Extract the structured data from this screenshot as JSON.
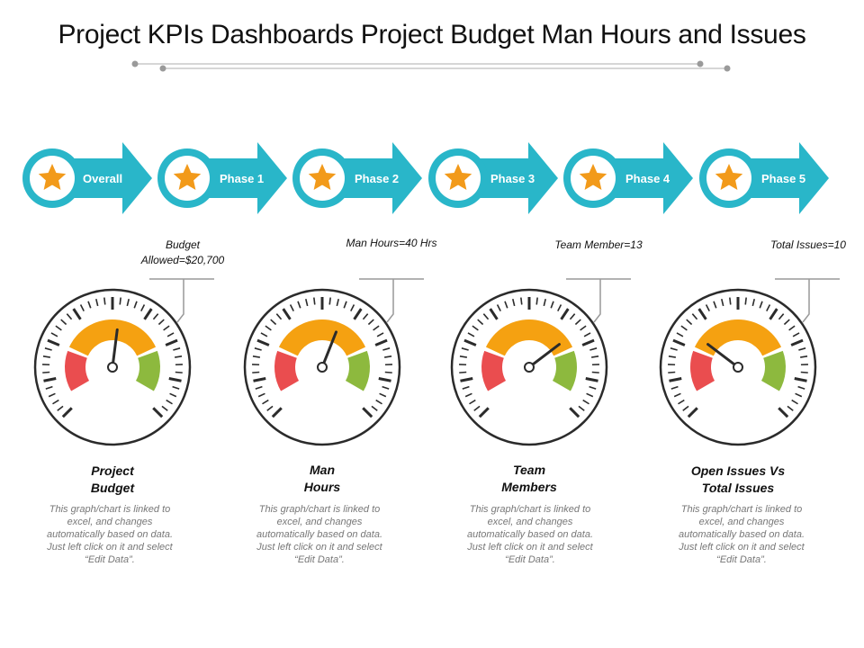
{
  "title": "Project KPIs Dashboards Project Budget Man Hours and Issues",
  "colors": {
    "teal": "#29b6c9",
    "teal_dark": "#1aa3b6",
    "star": "#f29a1a",
    "red": "#ea4d4f",
    "orange": "#f5a111",
    "green": "#8db93e",
    "dial": "#2b2b2b"
  },
  "phases": [
    {
      "label": "Overall",
      "icon": "star-icon"
    },
    {
      "label": "Phase 1",
      "icon": "star-icon"
    },
    {
      "label": "Phase 2",
      "icon": "star-icon"
    },
    {
      "label": "Phase 3",
      "icon": "star-icon"
    },
    {
      "label": "Phase 4",
      "icon": "star-icon"
    },
    {
      "label": "Phase 5",
      "icon": "star-icon"
    }
  ],
  "gauges": [
    {
      "callout": "Budget Allowed=$20,700",
      "title": "Project Budget",
      "description": "This graph/chart is linked to excel, and changes automatically based on data. Just left click on it and select “Edit Data”.",
      "needle_fraction": 0.53
    },
    {
      "callout": "Man Hours=40 Hrs",
      "title": "Man Hours",
      "description": "This graph/chart is linked to excel, and changes automatically based on data. Just left click on it and select “Edit Data”.",
      "needle_fraction": 0.59
    },
    {
      "callout": "Team Member=13",
      "title": "Team Members",
      "description": "This graph/chart is linked to excel, and changes automatically based on data. Just left click on it and select “Edit Data”.",
      "needle_fraction": 0.72
    },
    {
      "callout": "Total Issues=10",
      "title": "Open Issues Vs Total Issues",
      "description": "This graph/chart is linked to excel, and changes automatically based on data. Just left click on it and select “Edit Data”.",
      "needle_fraction": 0.28
    }
  ]
}
